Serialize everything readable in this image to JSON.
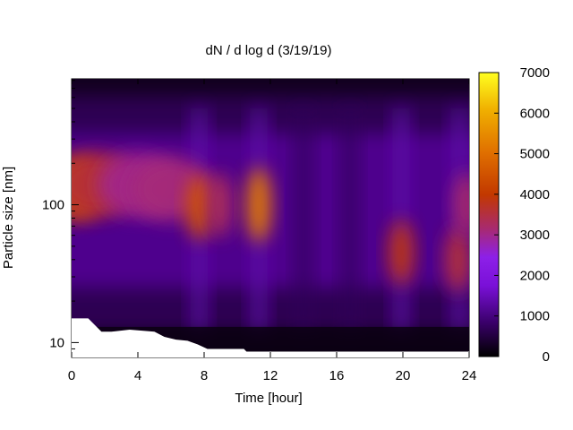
{
  "chart_data": {
    "type": "heatmap",
    "title": "dN / d log d (3/19/19)",
    "xlabel": "Time [hour]",
    "ylabel": "Particle size [nm]",
    "xlim": [
      0,
      24
    ],
    "x_ticks": [
      "0",
      "4",
      "8",
      "12",
      "16",
      "20",
      "24"
    ],
    "y_scale": "log",
    "ylim": [
      7.8,
      820
    ],
    "y_ticks": [
      "10",
      "100"
    ],
    "colorbar": {
      "range": [
        0,
        7000
      ],
      "ticks": [
        "0",
        "1000",
        "2000",
        "3000",
        "4000",
        "5000",
        "6000",
        "7000"
      ],
      "palette": "black-purple-red-orange-yellow"
    },
    "background_color": "#12001e",
    "hotspots": [
      {
        "time_h": 0.3,
        "size_nm": 130,
        "value": 4300
      },
      {
        "time_h": 1.5,
        "size_nm": 140,
        "value": 3600
      },
      {
        "time_h": 4.0,
        "size_nm": 140,
        "value": 3000
      },
      {
        "time_h": 6.0,
        "size_nm": 130,
        "value": 3100
      },
      {
        "time_h": 7.7,
        "size_nm": 95,
        "value": 4500
      },
      {
        "time_h": 9.0,
        "size_nm": 100,
        "value": 3300
      },
      {
        "time_h": 11.3,
        "size_nm": 100,
        "value": 5200
      },
      {
        "time_h": 19.9,
        "size_nm": 45,
        "value": 3900
      },
      {
        "time_h": 23.3,
        "size_nm": 40,
        "value": 3600
      },
      {
        "time_h": 23.8,
        "size_nm": 100,
        "value": 3200
      }
    ],
    "no_data_region": "white area at small sizes (~8–15 nm) between 0 and 10.5 h"
  }
}
